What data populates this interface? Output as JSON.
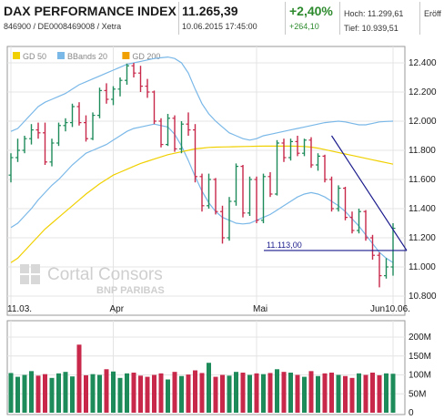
{
  "header": {
    "name": "DAX PERFORMANCE INDEX",
    "isin": "846900 / DE0008469008 / Xetra",
    "last": "11.265,39",
    "datetime": "10.06.2015 17:45:00",
    "change_pct": "+2,40%",
    "change_abs": "+264,10",
    "high": "Hoch: 11.299,61",
    "low": "Tief: 10.939,51",
    "open": "Eröff"
  },
  "legend": [
    {
      "label": "GD 50",
      "color": "#f0d000"
    },
    {
      "label": "BBands 20",
      "color": "#7ab8e8"
    },
    {
      "label": "GD 200",
      "color": "#f0a000"
    }
  ],
  "watermark": {
    "line1": "Cortal Consors",
    "line2": "BNP PARIBAS"
  },
  "annotation": {
    "label": "11.113,00",
    "value": 11113
  },
  "chart_data": {
    "type": "ohlc",
    "ylim": [
      10800,
      12450
    ],
    "y_ticks": [
      "12.400",
      "12.200",
      "12.000",
      "11.800",
      "11.600",
      "11.400",
      "11.200",
      "11.000",
      "10.800"
    ],
    "y_tick_values": [
      12400,
      12200,
      12000,
      11800,
      11600,
      11400,
      11200,
      11000,
      10800
    ],
    "x_labels": [
      "11.03.",
      "Apr",
      "Mai",
      "Jun10.06."
    ],
    "x_label_indices": [
      0,
      15,
      36,
      56
    ],
    "bullish_color": "#1e8c5a",
    "bearish_color": "#c8284a",
    "candles": [
      {
        "o": 11630,
        "h": 11780,
        "l": 11580,
        "c": 11750
      },
      {
        "o": 11750,
        "h": 11880,
        "l": 11720,
        "c": 11800
      },
      {
        "o": 11800,
        "h": 11900,
        "l": 11780,
        "c": 11880
      },
      {
        "o": 11880,
        "h": 11980,
        "l": 11840,
        "c": 11940
      },
      {
        "o": 11940,
        "h": 11990,
        "l": 11880,
        "c": 11920
      },
      {
        "o": 11920,
        "h": 11990,
        "l": 11700,
        "c": 11720
      },
      {
        "o": 11720,
        "h": 11880,
        "l": 11690,
        "c": 11850
      },
      {
        "o": 11850,
        "h": 11990,
        "l": 11830,
        "c": 11970
      },
      {
        "o": 11970,
        "h": 12020,
        "l": 11930,
        "c": 11990
      },
      {
        "o": 11990,
        "h": 12120,
        "l": 11960,
        "c": 12100
      },
      {
        "o": 12100,
        "h": 12130,
        "l": 11970,
        "c": 11990
      },
      {
        "o": 11990,
        "h": 12040,
        "l": 11860,
        "c": 11880
      },
      {
        "o": 11880,
        "h": 12060,
        "l": 11870,
        "c": 12040
      },
      {
        "o": 12040,
        "h": 12230,
        "l": 12020,
        "c": 12210
      },
      {
        "o": 12210,
        "h": 12260,
        "l": 12120,
        "c": 12150
      },
      {
        "o": 12150,
        "h": 12240,
        "l": 12110,
        "c": 12220
      },
      {
        "o": 12220,
        "h": 12300,
        "l": 12170,
        "c": 12280
      },
      {
        "o": 12280,
        "h": 12395,
        "l": 12250,
        "c": 12380
      },
      {
        "o": 12380,
        "h": 12400,
        "l": 12300,
        "c": 12330
      },
      {
        "o": 12330,
        "h": 12380,
        "l": 12200,
        "c": 12240
      },
      {
        "o": 12240,
        "h": 12290,
        "l": 12160,
        "c": 12200
      },
      {
        "o": 12200,
        "h": 12210,
        "l": 11980,
        "c": 12000
      },
      {
        "o": 12000,
        "h": 12020,
        "l": 11820,
        "c": 11840
      },
      {
        "o": 11840,
        "h": 12050,
        "l": 11830,
        "c": 12020
      },
      {
        "o": 12020,
        "h": 12040,
        "l": 11790,
        "c": 11810
      },
      {
        "o": 11810,
        "h": 12000,
        "l": 11780,
        "c": 11980
      },
      {
        "o": 11980,
        "h": 12060,
        "l": 11900,
        "c": 11940
      },
      {
        "o": 11940,
        "h": 11980,
        "l": 11580,
        "c": 11620
      },
      {
        "o": 11620,
        "h": 11640,
        "l": 11380,
        "c": 11420
      },
      {
        "o": 11420,
        "h": 11640,
        "l": 11400,
        "c": 11600
      },
      {
        "o": 11600,
        "h": 11610,
        "l": 11360,
        "c": 11380
      },
      {
        "o": 11380,
        "h": 11420,
        "l": 11160,
        "c": 11200
      },
      {
        "o": 11200,
        "h": 11480,
        "l": 11180,
        "c": 11450
      },
      {
        "o": 11450,
        "h": 11710,
        "l": 11420,
        "c": 11690
      },
      {
        "o": 11690,
        "h": 11700,
        "l": 11340,
        "c": 11370
      },
      {
        "o": 11370,
        "h": 11620,
        "l": 11350,
        "c": 11600
      },
      {
        "o": 11600,
        "h": 11620,
        "l": 11300,
        "c": 11320
      },
      {
        "o": 11320,
        "h": 11640,
        "l": 11300,
        "c": 11620
      },
      {
        "o": 11620,
        "h": 11650,
        "l": 11480,
        "c": 11500
      },
      {
        "o": 11500,
        "h": 11870,
        "l": 11490,
        "c": 11850
      },
      {
        "o": 11850,
        "h": 11880,
        "l": 11720,
        "c": 11750
      },
      {
        "o": 11750,
        "h": 11880,
        "l": 11730,
        "c": 11860
      },
      {
        "o": 11860,
        "h": 11900,
        "l": 11760,
        "c": 11780
      },
      {
        "o": 11780,
        "h": 11880,
        "l": 11760,
        "c": 11870
      },
      {
        "o": 11870,
        "h": 11890,
        "l": 11680,
        "c": 11700
      },
      {
        "o": 11700,
        "h": 11780,
        "l": 11660,
        "c": 11760
      },
      {
        "o": 11760,
        "h": 11770,
        "l": 11580,
        "c": 11600
      },
      {
        "o": 11600,
        "h": 11620,
        "l": 11380,
        "c": 11400
      },
      {
        "o": 11400,
        "h": 11560,
        "l": 11380,
        "c": 11540
      },
      {
        "o": 11540,
        "h": 11550,
        "l": 11320,
        "c": 11340
      },
      {
        "o": 11340,
        "h": 11380,
        "l": 11230,
        "c": 11250
      },
      {
        "o": 11250,
        "h": 11400,
        "l": 11230,
        "c": 11380
      },
      {
        "o": 11380,
        "h": 11390,
        "l": 11180,
        "c": 11200
      },
      {
        "o": 11200,
        "h": 11220,
        "l": 11050,
        "c": 11080
      },
      {
        "o": 11080,
        "h": 11100,
        "l": 10860,
        "c": 10940
      },
      {
        "o": 10940,
        "h": 11060,
        "l": 10920,
        "c": 11000
      },
      {
        "o": 11000,
        "h": 11300,
        "l": 10940,
        "c": 11265
      }
    ],
    "gd50": [
      11030,
      11060,
      11110,
      11160,
      11210,
      11260,
      11300,
      11340,
      11380,
      11420,
      11460,
      11500,
      11535,
      11570,
      11600,
      11630,
      11650,
      11670,
      11690,
      11710,
      11725,
      11740,
      11755,
      11770,
      11780,
      11790,
      11800,
      11810,
      11815,
      11820,
      11822,
      11823,
      11824,
      11825,
      11826,
      11827,
      11828,
      11829,
      11829,
      11829,
      11829,
      11829,
      11828,
      11826,
      11822,
      11815,
      11805,
      11795,
      11785,
      11775,
      11765,
      11755,
      11745,
      11735,
      11725,
      11715,
      11705
    ],
    "bbands_upper": [
      11930,
      11950,
      12000,
      12050,
      12100,
      12130,
      12150,
      12170,
      12190,
      12220,
      12250,
      12270,
      12290,
      12310,
      12330,
      12350,
      12370,
      12390,
      12400,
      12410,
      12420,
      12430,
      12435,
      12440,
      12430,
      12400,
      12330,
      12220,
      12120,
      12050,
      12000,
      11960,
      11920,
      11900,
      11880,
      11870,
      11880,
      11900,
      11910,
      11920,
      11930,
      11940,
      11950,
      11960,
      11970,
      11980,
      11990,
      11995,
      12000,
      11995,
      11985,
      11975,
      11975,
      11985,
      11995,
      11998,
      12000
    ],
    "bbands_lower": [
      11270,
      11300,
      11350,
      11400,
      11460,
      11510,
      11560,
      11600,
      11650,
      11700,
      11740,
      11780,
      11800,
      11820,
      11840,
      11870,
      11900,
      11930,
      11950,
      11960,
      11970,
      11980,
      11970,
      11960,
      11910,
      11830,
      11730,
      11620,
      11520,
      11440,
      11380,
      11340,
      11320,
      11300,
      11295,
      11300,
      11320,
      11340,
      11360,
      11390,
      11420,
      11450,
      11480,
      11500,
      11510,
      11500,
      11480,
      11450,
      11420,
      11380,
      11330,
      11280,
      11220,
      11160,
      11100,
      11060,
      11030
    ],
    "volume": {
      "ylim": [
        0,
        200
      ],
      "y_ticks": [
        "200M",
        "150M",
        "100M",
        "50M",
        "0"
      ],
      "y_tick_values": [
        200,
        150,
        100,
        50,
        0
      ],
      "values": [
        105,
        95,
        100,
        110,
        98,
        102,
        92,
        104,
        108,
        96,
        180,
        99,
        102,
        100,
        115,
        109,
        92,
        104,
        106,
        98,
        95,
        100,
        104,
        88,
        108,
        97,
        101,
        112,
        105,
        132,
        95,
        100,
        98,
        108,
        106,
        100,
        104,
        102,
        105,
        115,
        108,
        106,
        100,
        95,
        110,
        97,
        104,
        106,
        100,
        97,
        92,
        104,
        100,
        106,
        99,
        104,
        103
      ]
    }
  }
}
